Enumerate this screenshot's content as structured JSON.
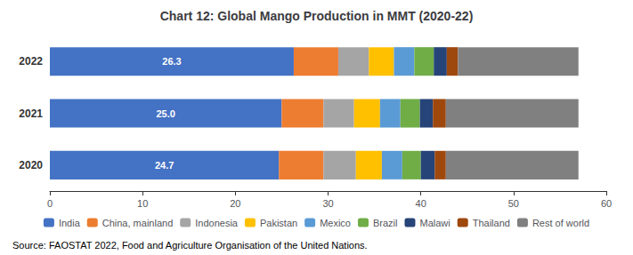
{
  "chart_data": {
    "type": "bar",
    "orientation": "horizontal",
    "stacked": true,
    "title": "Chart 12: Global Mango Production in MMT (2020-22)",
    "categories": [
      "2020",
      "2021",
      "2022"
    ],
    "series": [
      {
        "name": "India",
        "color": "#4472C4",
        "values": [
          24.7,
          25.0,
          26.3
        ],
        "data_labels": true,
        "value_labels": [
          "24.7",
          "25.0",
          "26.3"
        ]
      },
      {
        "name": "China, mainland",
        "color": "#ED7D31",
        "values": [
          4.8,
          4.5,
          4.8
        ]
      },
      {
        "name": "Indonesia",
        "color": "#A5A5A5",
        "values": [
          3.5,
          3.3,
          3.3
        ]
      },
      {
        "name": "Pakistan",
        "color": "#FFC000",
        "values": [
          2.8,
          2.8,
          2.7
        ]
      },
      {
        "name": "Mexico",
        "color": "#5B9BD5",
        "values": [
          2.2,
          2.2,
          2.2
        ]
      },
      {
        "name": "Brazil",
        "color": "#70AD47",
        "values": [
          2.0,
          2.1,
          2.1
        ]
      },
      {
        "name": "Malawi",
        "color": "#264478",
        "values": [
          1.5,
          1.4,
          1.4
        ]
      },
      {
        "name": "Thailand",
        "color": "#9E480E",
        "values": [
          1.2,
          1.4,
          1.2
        ]
      },
      {
        "name": "Rest of world",
        "color": "#808080",
        "values": [
          14.3,
          14.3,
          13.0
        ]
      }
    ],
    "xlim": [
      0,
      60
    ],
    "xticks": [
      0,
      10,
      20,
      30,
      40,
      50,
      60
    ],
    "grid": false,
    "legend": "bottom",
    "annotations": [
      "Source: FAOSTAT 2022, Food and Agriculture Organisation of the United Nations."
    ]
  }
}
